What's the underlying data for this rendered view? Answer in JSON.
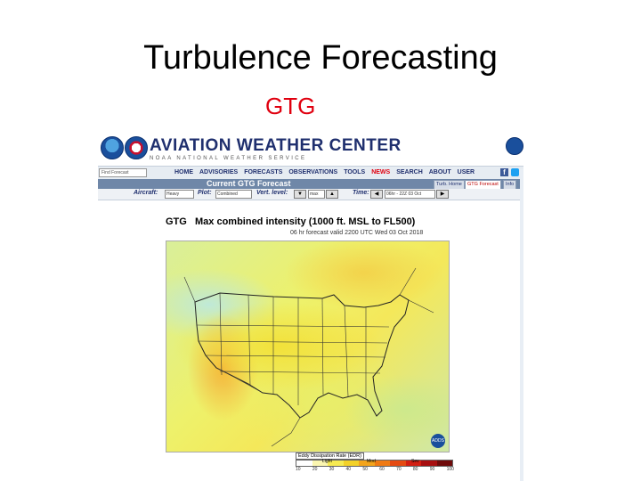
{
  "slide": {
    "title": "Turbulence Forecasting",
    "subtitle": "GTG"
  },
  "colors": {
    "subtitle": "#e0000f",
    "brand_navy": "#1f2f6e",
    "bar_blue": "#6f87a8",
    "active_nav": "#e0000f"
  },
  "site": {
    "name": "AVIATION WEATHER CENTER",
    "tagline": "NOAA NATIONAL WEATHER SERVICE",
    "search_placeholder": "Find Forecast",
    "nav": [
      "HOME",
      "ADVISORIES",
      "FORECASTS",
      "OBSERVATIONS",
      "TOOLS",
      "NEWS",
      "SEARCH",
      "ABOUT",
      "USER"
    ],
    "active_nav": "NEWS",
    "icons": [
      "noaa-logo",
      "nws-logo",
      "commerce-logo",
      "facebook-icon",
      "twitter-icon"
    ]
  },
  "page": {
    "bar_title": "Current GTG Forecast",
    "tabs": [
      "Turb. Home",
      "GTG Forecast",
      "Info"
    ],
    "selected_tab": "GTG Forecast"
  },
  "controls": {
    "aircraft_label": "Aircraft:",
    "aircraft_value": "Heavy",
    "plot_label": "Plot:",
    "plot_value": "Combined",
    "vert_label": "Vert. level:",
    "vert_value": "max",
    "time_label": "Time:",
    "time_value": "06hr - 22Z 03 Oct"
  },
  "product": {
    "title": "GTG   Max combined intensity (1000 ft. MSL to FL500)",
    "valid": "06 hr forecast valid 2200 UTC Wed 03 Oct 2018",
    "logo_text": "ADDS"
  },
  "legend": {
    "title": "Eddy Dissipation Rate (EDR)",
    "categories": [
      "Light",
      "Mod",
      "Sev"
    ],
    "ticks": [
      "10",
      "20",
      "30",
      "40",
      "50",
      "60",
      "70",
      "80",
      "90",
      "100"
    ],
    "colors": [
      "#ffffff",
      "#fbf6b0",
      "#f6ea52",
      "#f3d128",
      "#f3a41c",
      "#ef7a14",
      "#e44a12",
      "#d21e12",
      "#a70f10",
      "#6e0a0a"
    ]
  }
}
